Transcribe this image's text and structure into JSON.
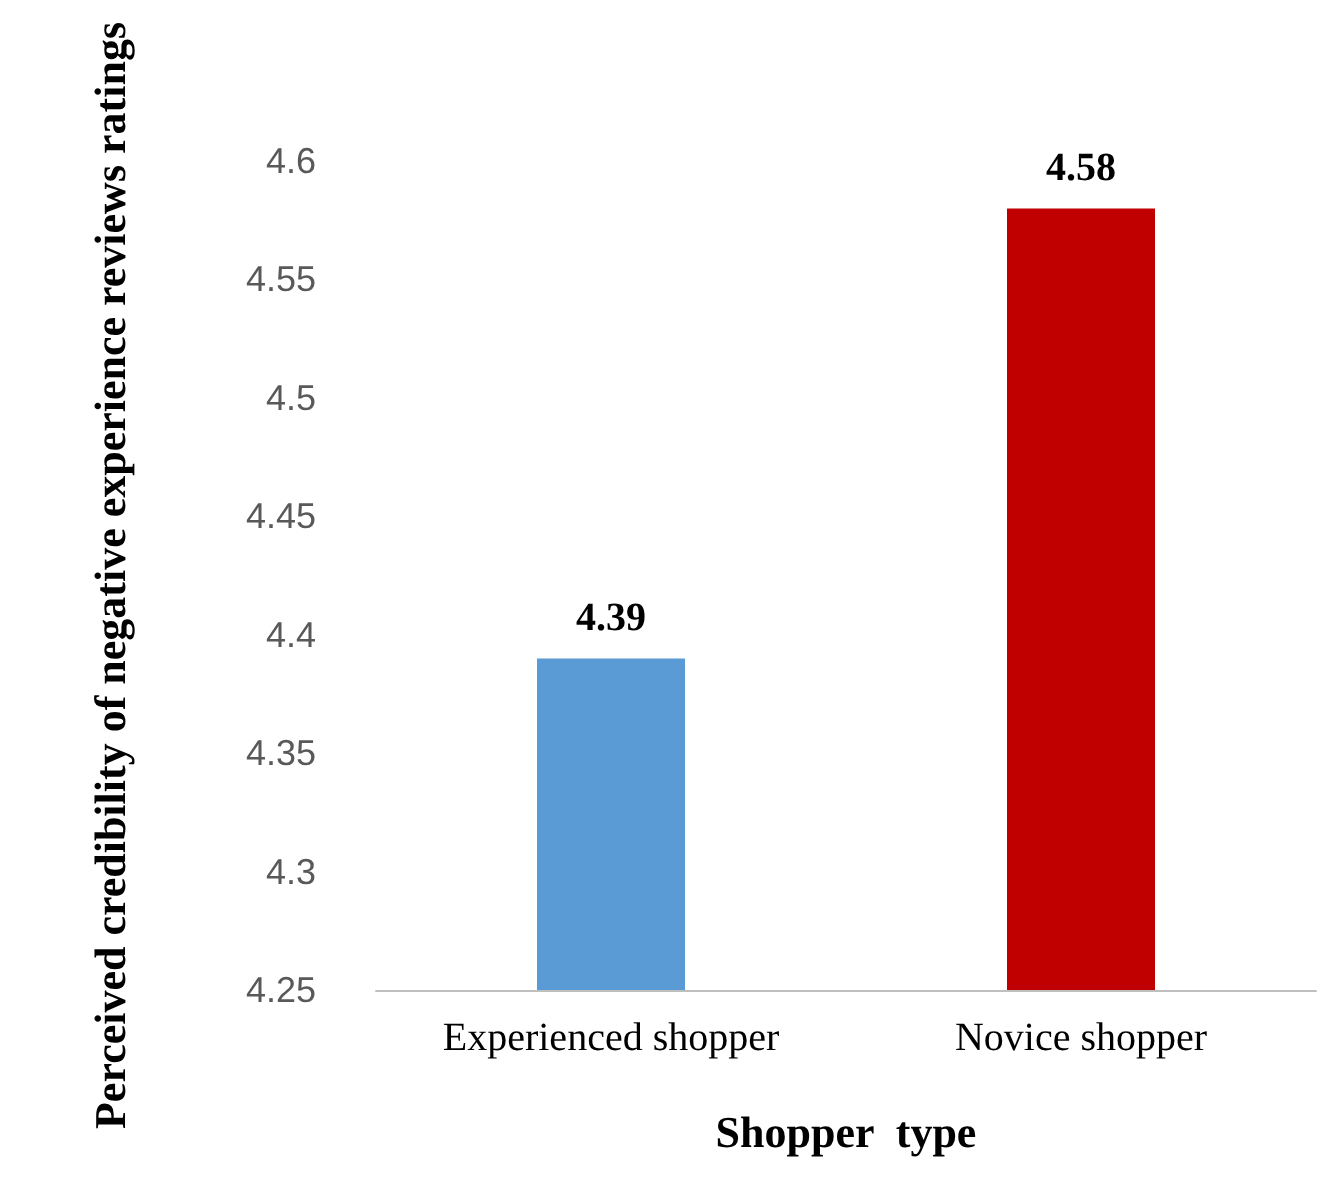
{
  "chart_data": {
    "type": "bar",
    "xlabel": "Shopper  type",
    "ylabel": "Perceived credibility of negative experience reviews ratings",
    "categories": [
      "Experienced shopper",
      "Novice shopper"
    ],
    "values": [
      4.39,
      4.58
    ],
    "colors": [
      "#5b9bd5",
      "#c00000"
    ],
    "ylim": [
      4.25,
      4.6
    ],
    "yticks": [
      4.25,
      4.3,
      4.35,
      4.4,
      4.45,
      4.5,
      4.55,
      4.6
    ],
    "grid": false,
    "data_labels": true
  }
}
